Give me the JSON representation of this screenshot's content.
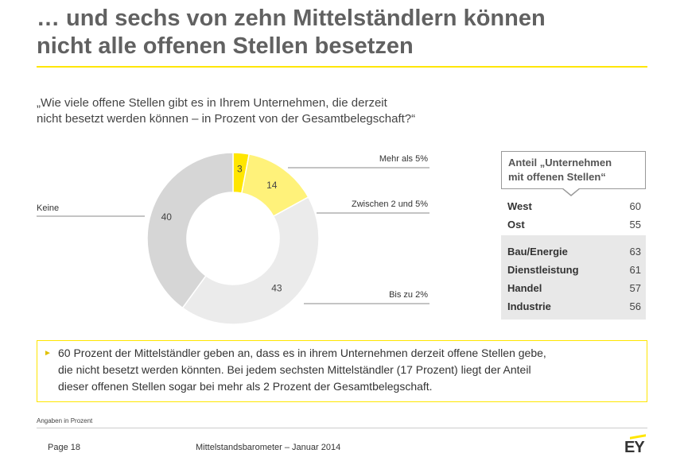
{
  "title": {
    "line1": "… und sechs von zehn Mittelständlern können",
    "line2": "nicht alle offenen Stellen besetzen"
  },
  "question": {
    "line1": "„Wie viele offene Stellen gibt es in Ihrem Unternehmen, die derzeit",
    "line2": "nicht besetzt werden können – in Prozent von der Gesamtbelegschaft?“"
  },
  "chart_data": {
    "type": "pie",
    "donut": true,
    "slices": [
      {
        "label": "Mehr als 5%",
        "value": 3,
        "color": "#ffe600"
      },
      {
        "label": "Zwischen 2 und 5%",
        "value": 14,
        "color": "#fff27a"
      },
      {
        "label": "Bis zu 2%",
        "value": 43,
        "color": "#ebebeb"
      },
      {
        "label": "Keine",
        "value": 40,
        "color": "#d6d6d6"
      }
    ]
  },
  "side_panel": {
    "header_line1": "Anteil „Unternehmen",
    "header_line2": "mit offenen Stellen“",
    "regions": [
      {
        "label": "West",
        "value": "60"
      },
      {
        "label": "Ost",
        "value": "55"
      }
    ],
    "sectors": [
      {
        "label": "Bau/Energie",
        "value": "63"
      },
      {
        "label": "Dienstleistung",
        "value": "61"
      },
      {
        "label": "Handel",
        "value": "57"
      },
      {
        "label": "Industrie",
        "value": "56"
      }
    ]
  },
  "summary": {
    "bullet": "►",
    "line1": "60 Prozent der Mittelständler geben an, dass es in ihrem Unternehmen derzeit offene Stellen gebe,",
    "line2": "die nicht besetzt werden könnten. Bei jedem sechsten Mittelständler (17 Prozent) liegt der Anteil",
    "line3": "dieser offenen Stellen sogar bei mehr als 2 Prozent der Gesamtbelegschaft."
  },
  "footnote": "Angaben in Prozent",
  "footer": {
    "page": "Page 18",
    "title": "Mittelstandsbarometer – Januar 2014",
    "logo": "EY"
  },
  "colors": {
    "accent": "#ffe600"
  }
}
